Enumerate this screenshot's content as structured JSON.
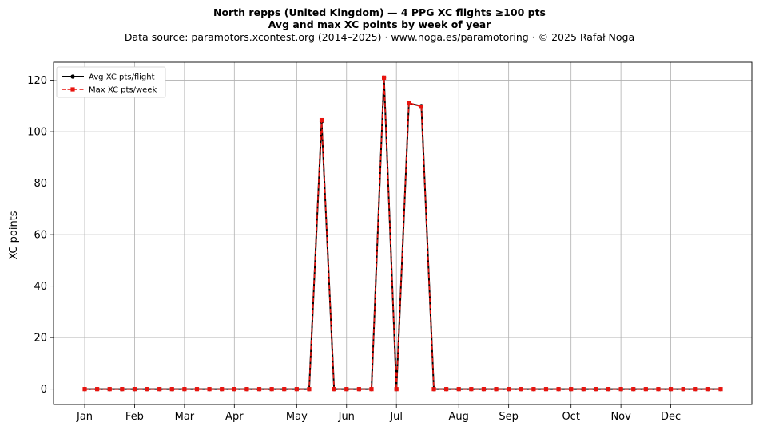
{
  "header": {
    "title": "North repps (United Kingdom)  —  4 PPG XC flights ≥100 pts",
    "subtitle": "Avg and max XC points by week of year",
    "source": "Data source: paramotors.xcontest.org (2014–2025)  ·  www.noga.es/paramotoring  ·  © 2025 Rafał Noga"
  },
  "chart_data": {
    "type": "line",
    "title": "North repps (United Kingdom)  —  4 PPG XC flights ≥100 pts",
    "subtitle": "Avg and max XC points by week of year",
    "xlabel": "",
    "ylabel": "XC points",
    "ylim": [
      -6,
      127
    ],
    "xlim": [
      -1.5,
      54.5
    ],
    "yticks": [
      0,
      20,
      40,
      60,
      80,
      100,
      120
    ],
    "month_ticks": [
      {
        "label": "Jan",
        "week": 1
      },
      {
        "label": "Feb",
        "week": 5
      },
      {
        "label": "Mar",
        "week": 9
      },
      {
        "label": "Apr",
        "week": 13
      },
      {
        "label": "May",
        "week": 18
      },
      {
        "label": "Jun",
        "week": 22
      },
      {
        "label": "Jul",
        "week": 26
      },
      {
        "label": "Aug",
        "week": 31
      },
      {
        "label": "Sep",
        "week": 35
      },
      {
        "label": "Oct",
        "week": 40
      },
      {
        "label": "Nov",
        "week": 44
      },
      {
        "label": "Dec",
        "week": 48
      }
    ],
    "grid": true,
    "legend_position": "top-left",
    "x": [
      1,
      2,
      3,
      4,
      5,
      6,
      7,
      8,
      9,
      10,
      11,
      12,
      13,
      14,
      15,
      16,
      17,
      18,
      19,
      20,
      21,
      22,
      23,
      24,
      25,
      26,
      27,
      28,
      29,
      30,
      31,
      32,
      33,
      34,
      35,
      36,
      37,
      38,
      39,
      40,
      41,
      42,
      43,
      44,
      45,
      46,
      47,
      48,
      49,
      50,
      51,
      52
    ],
    "series": [
      {
        "name": "Avg XC pts/flight",
        "color": "#000000",
        "style": "solid",
        "marker": "circle",
        "values": [
          0,
          0,
          0,
          0,
          0,
          0,
          0,
          0,
          0,
          0,
          0,
          0,
          0,
          0,
          0,
          0,
          0,
          0,
          0,
          104,
          0,
          0,
          0,
          0,
          121,
          0,
          111,
          110,
          0,
          0,
          0,
          0,
          0,
          0,
          0,
          0,
          0,
          0,
          0,
          0,
          0,
          0,
          0,
          0,
          0,
          0,
          0,
          0,
          0,
          0,
          0,
          0
        ]
      },
      {
        "name": "Max XC pts/week",
        "color": "#e8140f",
        "style": "dashed",
        "marker": "square",
        "values": [
          0,
          0,
          0,
          0,
          0,
          0,
          0,
          0,
          0,
          0,
          0,
          0,
          0,
          0,
          0,
          0,
          0,
          0,
          0,
          104.5,
          0,
          0,
          0,
          0,
          121,
          0,
          111.3,
          109.7,
          0,
          0,
          0,
          0,
          0,
          0,
          0,
          0,
          0,
          0,
          0,
          0,
          0,
          0,
          0,
          0,
          0,
          0,
          0,
          0,
          0,
          0,
          0,
          0
        ]
      }
    ]
  }
}
